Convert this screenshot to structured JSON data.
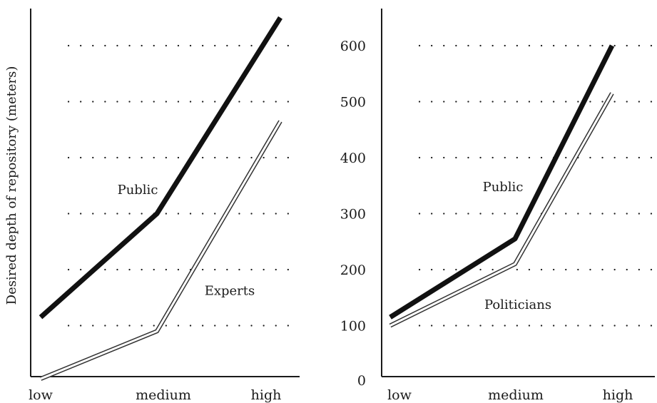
{
  "chart_data": [
    {
      "type": "line",
      "panel": "left",
      "ylabel": "Desired depth of repository (meters)",
      "xlabel": "",
      "categories": [
        "low",
        "medium",
        "high"
      ],
      "ylim": [
        0,
        650
      ],
      "grid": "horizontal dotted",
      "gridlines": [
        100,
        200,
        300,
        400,
        500,
        600
      ],
      "yticks_shown": false,
      "series": [
        {
          "name": "Public",
          "style": "solid-black",
          "values": [
            115,
            300,
            650
          ]
        },
        {
          "name": "Experts",
          "style": "hollow-white",
          "values": [
            5,
            90,
            465
          ]
        }
      ],
      "annotations": [
        {
          "text": "Public",
          "anchor_category": "low",
          "anchor_value": 335
        },
        {
          "text": "Experts",
          "anchor_category": "medium",
          "anchor_value": 155
        }
      ]
    },
    {
      "type": "line",
      "panel": "right",
      "xlabel": "",
      "ylabel": "",
      "categories": [
        "low",
        "medium",
        "high"
      ],
      "ylim": [
        0,
        650
      ],
      "grid": "horizontal dotted",
      "gridlines": [
        100,
        200,
        300,
        400,
        500,
        600
      ],
      "yticks": [
        "0",
        "100",
        "200",
        "300",
        "400",
        "500",
        "600"
      ],
      "ytick_values": [
        0,
        100,
        200,
        300,
        400,
        500,
        600
      ],
      "series": [
        {
          "name": "Public",
          "style": "solid-black",
          "values": [
            115,
            255,
            600
          ]
        },
        {
          "name": "Politicians",
          "style": "hollow-white",
          "values": [
            100,
            210,
            515
          ]
        }
      ],
      "annotations": [
        {
          "text": "Public",
          "anchor_category": "medium",
          "anchor_value": 340
        },
        {
          "text": "Politicians",
          "anchor_category": "medium",
          "anchor_value": 130
        }
      ]
    }
  ],
  "colors": {
    "solid": "#111111",
    "hollow_outline": "#333333",
    "hollow_fill": "#ffffff"
  }
}
